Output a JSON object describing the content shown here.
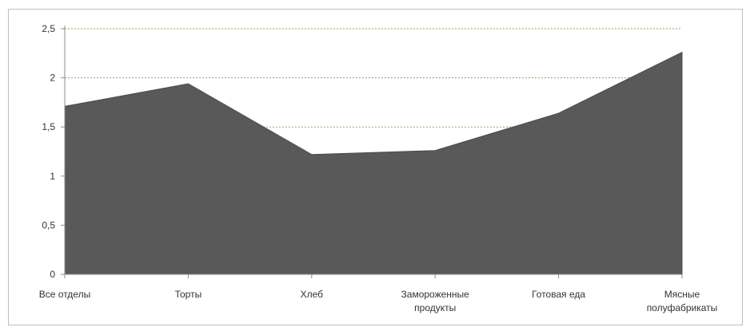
{
  "chart_data": {
    "type": "area",
    "title": "",
    "xlabel": "",
    "ylabel": "",
    "categories": [
      [
        "Все отделы"
      ],
      [
        "Торты"
      ],
      [
        "Хлеб"
      ],
      [
        "Замороженные",
        "продукты"
      ],
      [
        "Готовая еда"
      ],
      [
        "Мясные",
        "полуфабрикаты"
      ]
    ],
    "series": [
      {
        "values": [
          1.71,
          1.94,
          1.22,
          1.26,
          1.64,
          2.26
        ]
      }
    ],
    "ylim": [
      0,
      2.5
    ],
    "y_ticks": [
      "0",
      "0,5",
      "1",
      "1,5",
      "2",
      "2,5"
    ],
    "grid": true,
    "legend": "none",
    "colors": {
      "area": "#595959",
      "area_edge": "#4a4a4a",
      "grid": "#8fa35a",
      "axis": "#8c8c8c"
    }
  }
}
